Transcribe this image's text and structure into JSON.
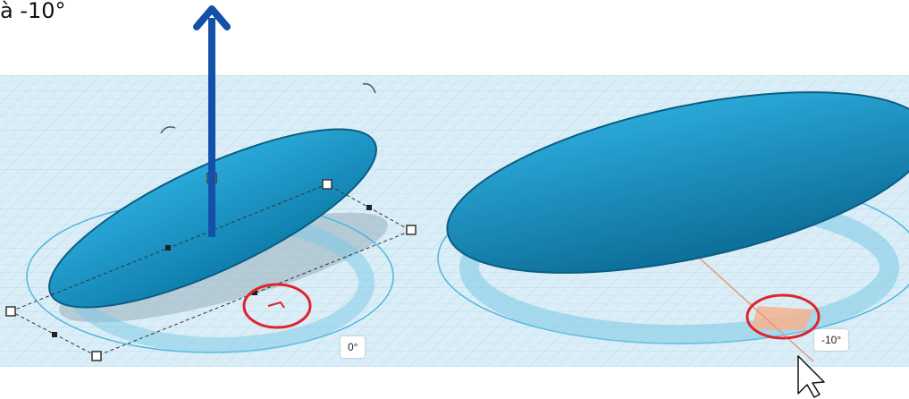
{
  "caption": "à -10°",
  "left_view": {
    "angle_readout": "0°"
  },
  "right_view": {
    "angle_readout": "-10°"
  },
  "colors": {
    "shape_fill": "#1f9acb",
    "shape_dark": "#0d6e99",
    "grid_bg": "#dbeef7",
    "grid_line": "#a9d3e8",
    "arrow": "#1350aa",
    "highlight_circle": "#e0242c",
    "angle_wedge": "#f4b18e"
  },
  "icons": [
    "up-arrow-icon",
    "rotate-arrow-icon",
    "mouse-cursor-icon",
    "resize-handle-icon"
  ]
}
